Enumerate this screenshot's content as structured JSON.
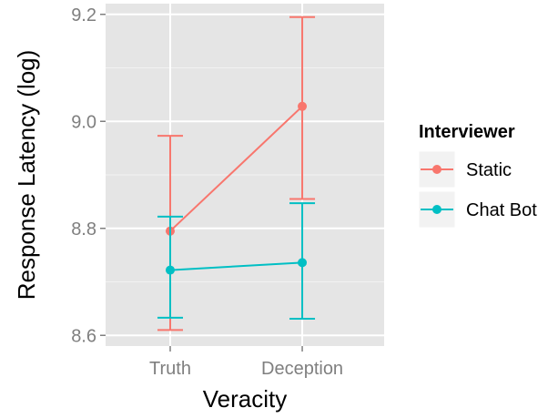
{
  "chart_data": {
    "type": "line",
    "xlabel": "Veracity",
    "ylabel": "Response Latency (log)",
    "categories": [
      "Truth",
      "Deception"
    ],
    "ylim": [
      8.58,
      9.22
    ],
    "yticks": [
      8.6,
      8.8,
      9.0,
      9.2
    ],
    "ytick_labels": [
      "8.6",
      "8.8",
      "9.0",
      "9.2"
    ],
    "grid": true,
    "legend": {
      "title": "Interviewer",
      "position": "right"
    },
    "series": [
      {
        "name": "Static",
        "color": "#f8766d",
        "values": [
          8.795,
          9.028
        ],
        "lower": [
          8.61,
          8.855
        ],
        "upper": [
          8.973,
          9.195
        ]
      },
      {
        "name": "Chat Bot",
        "color": "#00bfc4",
        "values": [
          8.722,
          8.736
        ],
        "lower": [
          8.633,
          8.631
        ],
        "upper": [
          8.822,
          8.847
        ]
      }
    ]
  }
}
